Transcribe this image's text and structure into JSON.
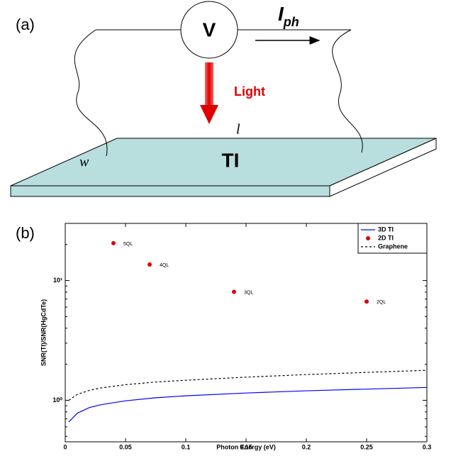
{
  "diagram": {
    "panel_label": "(a)",
    "meter": "V",
    "current": "I",
    "current_subscript": "ph",
    "light": "Light",
    "length": "l",
    "width": "w",
    "material": "TI"
  },
  "chart_data": {
    "type": "scatter-line",
    "panel_label": "(b)",
    "xlabel": "Photon Energy (eV)",
    "ylabel": "SNR(TI)/SNR(HgCdTe)",
    "xlim": [
      0,
      0.3
    ],
    "xticks": [
      0,
      0.05,
      0.1,
      0.15,
      0.2,
      0.25,
      0.3
    ],
    "ylim": [
      0.45,
      30
    ],
    "yscale": "log",
    "yticks": [
      {
        "value": 1,
        "label": "10⁰"
      },
      {
        "value": 10,
        "label": "10¹"
      }
    ],
    "legend": "upper right",
    "series": [
      {
        "name": "3D TI",
        "color": "#0000ff",
        "style": "line",
        "linestyle": "solid",
        "x": [
          0.003,
          0.01,
          0.02,
          0.03,
          0.05,
          0.075,
          0.1,
          0.15,
          0.2,
          0.25,
          0.3
        ],
        "values": [
          0.66,
          0.78,
          0.87,
          0.92,
          0.99,
          1.05,
          1.09,
          1.15,
          1.2,
          1.24,
          1.28
        ]
      },
      {
        "name": "2D TI",
        "color": "#dd0000",
        "style": "marker",
        "x": [
          0.04,
          0.07,
          0.14,
          0.25
        ],
        "values": [
          20.5,
          13.6,
          8.05,
          6.67
        ],
        "point_labels": [
          "5QL",
          "4QL",
          "3QL",
          "2QL"
        ]
      },
      {
        "name": "Graphene",
        "color": "#000000",
        "style": "line",
        "linestyle": "dashed",
        "x": [
          0.003,
          0.01,
          0.02,
          0.03,
          0.05,
          0.075,
          0.1,
          0.15,
          0.2,
          0.25,
          0.3
        ],
        "values": [
          1.0,
          1.12,
          1.21,
          1.27,
          1.35,
          1.42,
          1.47,
          1.56,
          1.64,
          1.71,
          1.78
        ]
      }
    ]
  }
}
